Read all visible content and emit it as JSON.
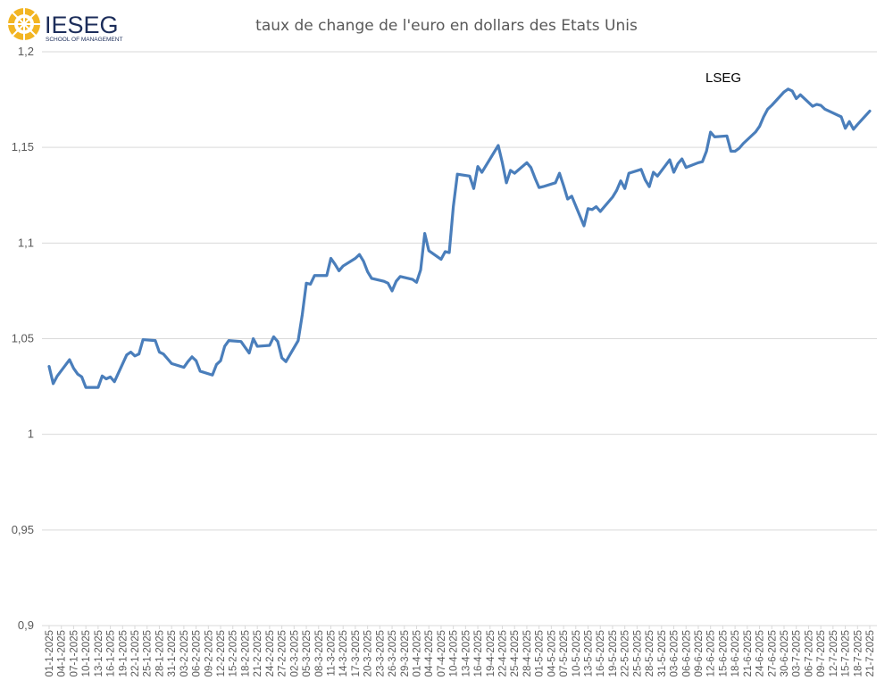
{
  "logo": {
    "name": "IESEG",
    "tagline": "SCHOOL OF MANAGEMENT"
  },
  "chart_data": {
    "type": "line",
    "title": "taux de change de l'euro en dollars des Etats Unis",
    "annotation": "LSEG",
    "xlabel": "",
    "ylabel": "",
    "ylim": [
      0.9,
      1.2
    ],
    "ytick_labels": [
      "0,9",
      "0,95",
      "1",
      "1,05",
      "1,1",
      "1,15",
      "1,2"
    ],
    "ytick_values": [
      0.9,
      0.95,
      1.0,
      1.05,
      1.1,
      1.15,
      1.2
    ],
    "grid": "horizontal",
    "x_tick_labels": [
      "01-1-2025",
      "04-1-2025",
      "07-1-2025",
      "10-1-2025",
      "13-1-2025",
      "16-1-2025",
      "19-1-2025",
      "22-1-2025",
      "25-1-2025",
      "28-1-2025",
      "31-1-2025",
      "03-2-2025",
      "06-2-2025",
      "09-2-2025",
      "12-2-2025",
      "15-2-2025",
      "18-2-2025",
      "21-2-2025",
      "24-2-2025",
      "27-2-2025",
      "02-3-2025",
      "05-3-2025",
      "08-3-2025",
      "11-3-2025",
      "14-3-2025",
      "17-3-2025",
      "20-3-2025",
      "23-3-2025",
      "26-3-2025",
      "29-3-2025",
      "01-4-2025",
      "04-4-2025",
      "07-4-2025",
      "10-4-2025",
      "13-4-2025",
      "16-4-2025",
      "19-4-2025",
      "22-4-2025",
      "25-4-2025",
      "28-4-2025",
      "01-5-2025",
      "04-5-2025",
      "07-5-2025",
      "10-5-2025",
      "13-5-2025",
      "16-5-2025",
      "19-5-2025",
      "22-5-2025",
      "25-5-2025",
      "28-5-2025",
      "31-5-2025",
      "03-6-2025",
      "06-6-2025",
      "09-6-2025",
      "12-6-2025",
      "15-6-2025",
      "18-6-2025",
      "21-6-2025",
      "24-6-2025",
      "27-6-2025",
      "30-6-2025",
      "03-7-2025",
      "06-7-2025",
      "09-7-2025",
      "12-7-2025",
      "15-7-2025",
      "18-7-2025",
      "21-7-2025"
    ],
    "series": [
      {
        "color": "#4a7ebb",
        "points": [
          [
            "01-1-2025",
            1.0355
          ],
          [
            "02-1-2025",
            1.0265
          ],
          [
            "03-1-2025",
            1.0305
          ],
          [
            "06-1-2025",
            1.039
          ],
          [
            "07-1-2025",
            1.0345
          ],
          [
            "08-1-2025",
            1.0315
          ],
          [
            "09-1-2025",
            1.03
          ],
          [
            "10-1-2025",
            1.0245
          ],
          [
            "13-1-2025",
            1.0245
          ],
          [
            "14-1-2025",
            1.0305
          ],
          [
            "15-1-2025",
            1.029
          ],
          [
            "16-1-2025",
            1.03
          ],
          [
            "17-1-2025",
            1.0275
          ],
          [
            "20-1-2025",
            1.0415
          ],
          [
            "21-1-2025",
            1.043
          ],
          [
            "22-1-2025",
            1.041
          ],
          [
            "23-1-2025",
            1.042
          ],
          [
            "24-1-2025",
            1.0495
          ],
          [
            "27-1-2025",
            1.049
          ],
          [
            "28-1-2025",
            1.043
          ],
          [
            "29-1-2025",
            1.042
          ],
          [
            "30-1-2025",
            1.0395
          ],
          [
            "31-1-2025",
            1.037
          ],
          [
            "03-2-2025",
            1.035
          ],
          [
            "04-2-2025",
            1.038
          ],
          [
            "05-2-2025",
            1.0405
          ],
          [
            "06-2-2025",
            1.0385
          ],
          [
            "07-2-2025",
            1.033
          ],
          [
            "10-2-2025",
            1.031
          ],
          [
            "11-2-2025",
            1.0365
          ],
          [
            "12-2-2025",
            1.0385
          ],
          [
            "13-2-2025",
            1.046
          ],
          [
            "14-2-2025",
            1.049
          ],
          [
            "17-2-2025",
            1.0485
          ],
          [
            "18-2-2025",
            1.0455
          ],
          [
            "19-2-2025",
            1.0425
          ],
          [
            "20-2-2025",
            1.05
          ],
          [
            "21-2-2025",
            1.046
          ],
          [
            "24-2-2025",
            1.0465
          ],
          [
            "25-2-2025",
            1.051
          ],
          [
            "26-2-2025",
            1.0485
          ],
          [
            "27-2-2025",
            1.04
          ],
          [
            "28-2-2025",
            1.038
          ],
          [
            "03-3-2025",
            1.049
          ],
          [
            "04-3-2025",
            1.0625
          ],
          [
            "05-3-2025",
            1.079
          ],
          [
            "06-3-2025",
            1.0785
          ],
          [
            "07-3-2025",
            1.083
          ],
          [
            "10-3-2025",
            1.083
          ],
          [
            "11-3-2025",
            1.092
          ],
          [
            "12-3-2025",
            1.089
          ],
          [
            "13-3-2025",
            1.0855
          ],
          [
            "14-3-2025",
            1.088
          ],
          [
            "17-3-2025",
            1.092
          ],
          [
            "18-3-2025",
            1.094
          ],
          [
            "19-3-2025",
            1.0905
          ],
          [
            "20-3-2025",
            1.085
          ],
          [
            "21-3-2025",
            1.0815
          ],
          [
            "24-3-2025",
            1.08
          ],
          [
            "25-3-2025",
            1.079
          ],
          [
            "26-3-2025",
            1.075
          ],
          [
            "27-3-2025",
            1.08
          ],
          [
            "28-3-2025",
            1.0825
          ],
          [
            "31-3-2025",
            1.081
          ],
          [
            "01-4-2025",
            1.0795
          ],
          [
            "02-4-2025",
            1.086
          ],
          [
            "03-4-2025",
            1.105
          ],
          [
            "04-4-2025",
            1.096
          ],
          [
            "07-4-2025",
            1.0915
          ],
          [
            "08-4-2025",
            1.0955
          ],
          [
            "09-4-2025",
            1.095
          ],
          [
            "10-4-2025",
            1.119
          ],
          [
            "11-4-2025",
            1.136
          ],
          [
            "14-4-2025",
            1.135
          ],
          [
            "15-4-2025",
            1.1285
          ],
          [
            "16-4-2025",
            1.14
          ],
          [
            "17-4-2025",
            1.137
          ],
          [
            "21-4-2025",
            1.151
          ],
          [
            "22-4-2025",
            1.142
          ],
          [
            "23-4-2025",
            1.1315
          ],
          [
            "24-4-2025",
            1.138
          ],
          [
            "25-4-2025",
            1.1365
          ],
          [
            "28-4-2025",
            1.142
          ],
          [
            "29-4-2025",
            1.1395
          ],
          [
            "30-4-2025",
            1.134
          ],
          [
            "01-5-2025",
            1.129
          ],
          [
            "02-5-2025",
            1.1295
          ],
          [
            "05-5-2025",
            1.1315
          ],
          [
            "06-5-2025",
            1.1365
          ],
          [
            "07-5-2025",
            1.13
          ],
          [
            "08-5-2025",
            1.123
          ],
          [
            "09-5-2025",
            1.1245
          ],
          [
            "12-5-2025",
            1.109
          ],
          [
            "13-5-2025",
            1.118
          ],
          [
            "14-5-2025",
            1.1175
          ],
          [
            "15-5-2025",
            1.119
          ],
          [
            "16-5-2025",
            1.1165
          ],
          [
            "19-5-2025",
            1.124
          ],
          [
            "20-5-2025",
            1.1275
          ],
          [
            "21-5-2025",
            1.1325
          ],
          [
            "22-5-2025",
            1.1285
          ],
          [
            "23-5-2025",
            1.1365
          ],
          [
            "26-5-2025",
            1.1385
          ],
          [
            "27-5-2025",
            1.133
          ],
          [
            "28-5-2025",
            1.1295
          ],
          [
            "29-5-2025",
            1.137
          ],
          [
            "30-5-2025",
            1.135
          ],
          [
            "02-6-2025",
            1.1435
          ],
          [
            "03-6-2025",
            1.137
          ],
          [
            "04-6-2025",
            1.1415
          ],
          [
            "05-6-2025",
            1.144
          ],
          [
            "06-6-2025",
            1.1395
          ],
          [
            "09-6-2025",
            1.142
          ],
          [
            "10-6-2025",
            1.1425
          ],
          [
            "11-6-2025",
            1.148
          ],
          [
            "12-6-2025",
            1.158
          ],
          [
            "13-6-2025",
            1.1555
          ],
          [
            "16-6-2025",
            1.156
          ],
          [
            "17-6-2025",
            1.148
          ],
          [
            "18-6-2025",
            1.148
          ],
          [
            "19-6-2025",
            1.1495
          ],
          [
            "20-6-2025",
            1.152
          ],
          [
            "23-6-2025",
            1.158
          ],
          [
            "24-6-2025",
            1.161
          ],
          [
            "25-6-2025",
            1.166
          ],
          [
            "26-6-2025",
            1.17
          ],
          [
            "27-6-2025",
            1.172
          ],
          [
            "30-6-2025",
            1.179
          ],
          [
            "01-7-2025",
            1.1805
          ],
          [
            "02-7-2025",
            1.1795
          ],
          [
            "03-7-2025",
            1.1755
          ],
          [
            "04-7-2025",
            1.1775
          ],
          [
            "07-7-2025",
            1.1715
          ],
          [
            "08-7-2025",
            1.1725
          ],
          [
            "09-7-2025",
            1.172
          ],
          [
            "10-7-2025",
            1.17
          ],
          [
            "11-7-2025",
            1.169
          ],
          [
            "14-7-2025",
            1.166
          ],
          [
            "15-7-2025",
            1.16
          ],
          [
            "16-7-2025",
            1.1635
          ],
          [
            "17-7-2025",
            1.1595
          ],
          [
            "18-7-2025",
            1.162
          ],
          [
            "21-7-2025",
            1.169
          ]
        ]
      }
    ]
  }
}
